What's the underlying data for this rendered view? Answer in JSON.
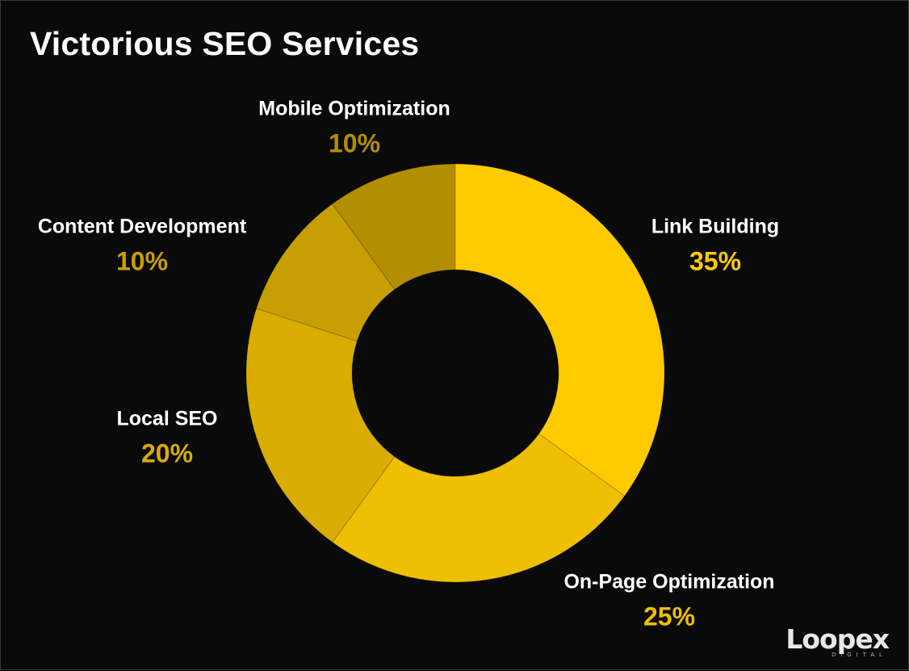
{
  "chart_data": {
    "type": "pie",
    "title": "Victorious SEO Services",
    "donut": true,
    "categories": [
      "Link Building",
      "On-Page Optimization",
      "Local SEO",
      "Content Development",
      "Mobile Optimization"
    ],
    "values": [
      35,
      25,
      20,
      10,
      10
    ],
    "value_labels": [
      "35%",
      "25%",
      "20%",
      "10%",
      "10%"
    ],
    "colors": [
      "#FFCB00",
      "#EFBF02",
      "#D9AD02",
      "#C89F02",
      "#B38E00"
    ],
    "legend": "labels beside slices",
    "start": "top, clockwise"
  },
  "branding": {
    "logo_text": "Loopex",
    "logo_subtext": "DIGITAL"
  }
}
